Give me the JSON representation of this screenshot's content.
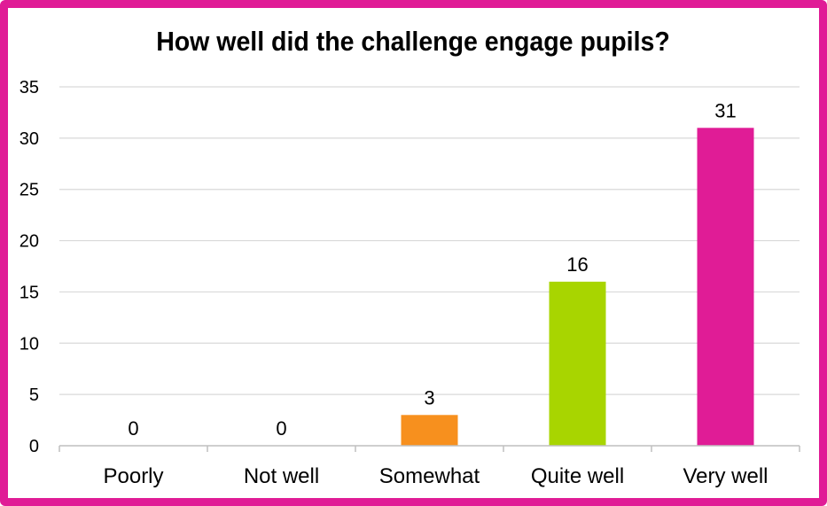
{
  "chart_data": {
    "type": "bar",
    "title": "How well did the challenge engage pupils?",
    "xlabel": "",
    "ylabel": "",
    "categories": [
      "Poorly",
      "Not well",
      "Somewhat",
      "Quite well",
      "Very well"
    ],
    "values": [
      0,
      0,
      3,
      16,
      31
    ],
    "colors": [
      "#e01c96",
      "#e01c96",
      "#f7901e",
      "#a8d500",
      "#e01c96"
    ],
    "ylim": [
      0,
      35
    ],
    "yticks": [
      0,
      5,
      10,
      15,
      20,
      25,
      30,
      35
    ],
    "grid": true,
    "data_labels": true,
    "legend": "none"
  },
  "theme": {
    "frame_color": "#e01c96",
    "grid_color": "#d9d9d9",
    "axis_color": "#bfbfbf"
  }
}
